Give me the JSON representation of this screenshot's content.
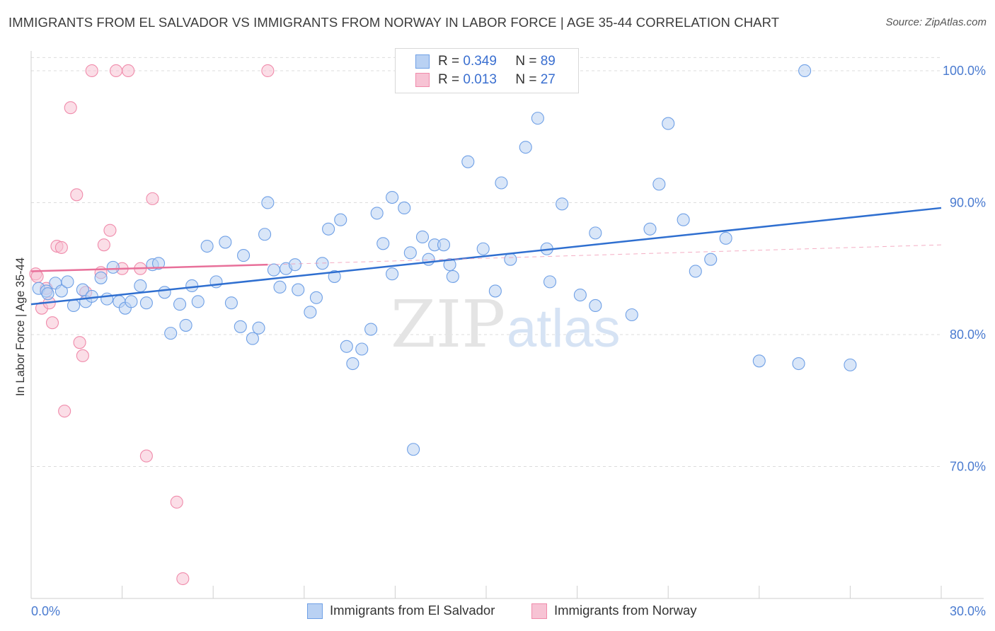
{
  "title": "IMMIGRANTS FROM EL SALVADOR VS IMMIGRANTS FROM NORWAY IN LABOR FORCE | AGE 35-44 CORRELATION CHART",
  "source": "Source: ZipAtlas.com",
  "watermark": {
    "zip": "ZIP",
    "atlas": "atlas"
  },
  "colors": {
    "blue": "#6fa0e6",
    "blue_fill": "#b9d1f3",
    "blue_line": "#2f6fd0",
    "pink": "#f08bab",
    "pink_fill": "#f7c3d4",
    "pink_line": "#e8709a"
  },
  "legend": {
    "rows": [
      {
        "r_label": "R =",
        "r_value": "0.349",
        "n_label": "N =",
        "n_value": "89"
      },
      {
        "r_label": "R =",
        "r_value": "0.013",
        "n_label": "N =",
        "n_value": "27"
      }
    ]
  },
  "chart_data": {
    "type": "scatter",
    "title": "IMMIGRANTS FROM EL SALVADOR VS IMMIGRANTS FROM NORWAY IN LABOR FORCE | AGE 35-44 CORRELATION CHART",
    "xlabel": "",
    "ylabel": "In Labor Force | Age 35-44",
    "xlim": [
      0,
      30
    ],
    "ylim": [
      60,
      101.5
    ],
    "x_tick_labels": [
      {
        "x": 0,
        "label": "0.0%"
      },
      {
        "x": 30,
        "label": "30.0%"
      }
    ],
    "y_tick_labels": [
      {
        "y": 70,
        "label": "70.0%"
      },
      {
        "y": 80,
        "label": "80.0%"
      },
      {
        "y": 90,
        "label": "90.0%"
      },
      {
        "y": 100,
        "label": "100.0%"
      }
    ],
    "series": [
      {
        "name": "Immigrants from El Salvador",
        "color": "blue",
        "points": [
          [
            0.25,
            83.5
          ],
          [
            0.5,
            83.3
          ],
          [
            0.55,
            83.1
          ],
          [
            0.8,
            83.9
          ],
          [
            1.0,
            83.3
          ],
          [
            1.2,
            84.0
          ],
          [
            1.4,
            82.2
          ],
          [
            1.7,
            83.4
          ],
          [
            1.8,
            82.5
          ],
          [
            2.0,
            82.9
          ],
          [
            2.3,
            84.3
          ],
          [
            2.5,
            82.7
          ],
          [
            2.7,
            85.1
          ],
          [
            2.9,
            82.5
          ],
          [
            3.1,
            82.0
          ],
          [
            3.3,
            82.5
          ],
          [
            3.6,
            83.7
          ],
          [
            3.8,
            82.4
          ],
          [
            4.0,
            85.3
          ],
          [
            4.2,
            85.4
          ],
          [
            4.4,
            83.2
          ],
          [
            4.6,
            80.1
          ],
          [
            4.9,
            82.3
          ],
          [
            5.1,
            80.7
          ],
          [
            5.3,
            83.7
          ],
          [
            5.5,
            82.5
          ],
          [
            5.8,
            86.7
          ],
          [
            6.1,
            84.0
          ],
          [
            6.4,
            87.0
          ],
          [
            6.6,
            82.4
          ],
          [
            6.9,
            80.6
          ],
          [
            7.0,
            86.0
          ],
          [
            7.3,
            79.7
          ],
          [
            7.5,
            80.5
          ],
          [
            7.7,
            87.6
          ],
          [
            7.8,
            90.0
          ],
          [
            8.0,
            84.9
          ],
          [
            8.2,
            83.6
          ],
          [
            8.4,
            85.0
          ],
          [
            8.7,
            85.3
          ],
          [
            8.8,
            83.4
          ],
          [
            9.2,
            81.7
          ],
          [
            9.4,
            82.8
          ],
          [
            9.6,
            85.4
          ],
          [
            9.8,
            88.0
          ],
          [
            10.0,
            84.4
          ],
          [
            10.2,
            88.7
          ],
          [
            10.4,
            79.1
          ],
          [
            10.6,
            77.8
          ],
          [
            10.9,
            78.9
          ],
          [
            11.2,
            80.4
          ],
          [
            11.4,
            89.2
          ],
          [
            11.6,
            86.9
          ],
          [
            11.9,
            84.6
          ],
          [
            11.9,
            90.4
          ],
          [
            12.3,
            89.6
          ],
          [
            12.5,
            86.2
          ],
          [
            12.6,
            71.3
          ],
          [
            12.9,
            87.4
          ],
          [
            13.1,
            85.7
          ],
          [
            13.3,
            86.8
          ],
          [
            13.6,
            86.8
          ],
          [
            13.8,
            85.3
          ],
          [
            13.9,
            84.4
          ],
          [
            14.4,
            93.1
          ],
          [
            14.9,
            86.5
          ],
          [
            15.3,
            83.3
          ],
          [
            15.5,
            91.5
          ],
          [
            15.8,
            85.7
          ],
          [
            16.3,
            94.2
          ],
          [
            16.7,
            96.4
          ],
          [
            17.0,
            86.5
          ],
          [
            17.1,
            84.0
          ],
          [
            17.5,
            89.9
          ],
          [
            18.1,
            83.0
          ],
          [
            18.6,
            87.7
          ],
          [
            18.6,
            82.2
          ],
          [
            19.8,
            81.5
          ],
          [
            20.4,
            88.0
          ],
          [
            20.7,
            91.4
          ],
          [
            21.0,
            96.0
          ],
          [
            21.5,
            88.7
          ],
          [
            21.9,
            84.8
          ],
          [
            22.4,
            85.7
          ],
          [
            22.9,
            87.3
          ],
          [
            24.0,
            78.0
          ],
          [
            25.3,
            77.8
          ],
          [
            25.5,
            100.0
          ],
          [
            27.0,
            77.7
          ]
        ],
        "trend": {
          "x": [
            0,
            30
          ],
          "y": [
            82.3,
            89.6
          ]
        }
      },
      {
        "name": "Immigrants from Norway",
        "color": "pink",
        "points": [
          [
            0.15,
            84.6
          ],
          [
            0.2,
            84.4
          ],
          [
            0.35,
            82.0
          ],
          [
            0.5,
            83.5
          ],
          [
            0.6,
            82.4
          ],
          [
            0.7,
            80.9
          ],
          [
            0.85,
            86.7
          ],
          [
            1.0,
            86.6
          ],
          [
            1.1,
            74.2
          ],
          [
            1.3,
            97.2
          ],
          [
            1.5,
            90.6
          ],
          [
            1.6,
            79.4
          ],
          [
            1.7,
            78.4
          ],
          [
            1.8,
            83.2
          ],
          [
            2.0,
            100.0
          ],
          [
            2.3,
            84.7
          ],
          [
            2.4,
            86.8
          ],
          [
            2.6,
            87.9
          ],
          [
            2.8,
            100.0
          ],
          [
            3.0,
            85.0
          ],
          [
            3.2,
            100.0
          ],
          [
            3.6,
            85.0
          ],
          [
            3.8,
            70.8
          ],
          [
            4.0,
            90.3
          ],
          [
            4.8,
            67.3
          ],
          [
            5.0,
            61.5
          ],
          [
            7.8,
            100.0
          ]
        ],
        "trend": {
          "x": [
            0,
            7.8
          ],
          "y": [
            84.8,
            85.3
          ]
        },
        "trend_extension": {
          "x": [
            7.8,
            30
          ],
          "y": [
            85.3,
            86.8
          ]
        }
      }
    ]
  },
  "bottom_legend": [
    {
      "label": "Immigrants from El Salvador"
    },
    {
      "label": "Immigrants from Norway"
    }
  ]
}
